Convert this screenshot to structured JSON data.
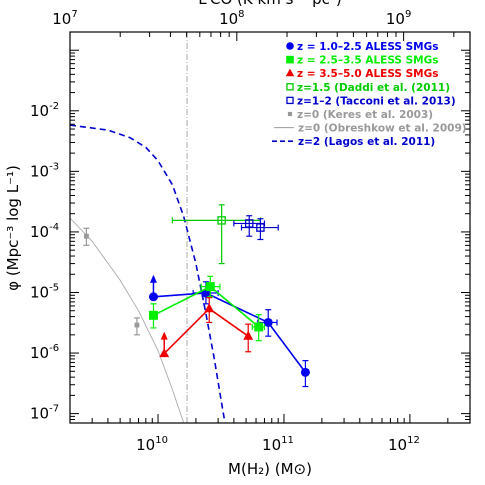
{
  "chart_data": {
    "type": "scatter",
    "title": "",
    "xlabel": "M(H₂) (M⊙)",
    "ylabel": "φ (Mpc⁻³ log L⁻¹)",
    "top_xlabel": "L′CO (K km s⁻¹ pc²)",
    "xscale": "log",
    "yscale": "log",
    "xlim": [
      2000000000.0,
      3000000000000.0
    ],
    "ylim": [
      7e-08,
      0.2
    ],
    "top_xlim": [
      10000000.0,
      2500000000.0
    ],
    "x_tick_labels": [
      "10",
      "10",
      "10"
    ],
    "x_tick_exponents": [
      "10",
      "11",
      "12"
    ],
    "y_tick_labels": [
      "10",
      "10",
      "10",
      "10",
      "10",
      "10"
    ],
    "y_tick_exponents": [
      "-7",
      "-6",
      "-5",
      "-4",
      "-3",
      "-2"
    ],
    "top_tick_labels": [
      "10",
      "10",
      "10"
    ],
    "top_tick_exponents": [
      "7",
      "8",
      "9"
    ],
    "vertical_line_x": 17000000000.0,
    "legend_position": "top-right",
    "legend": [
      {
        "label": "z = 1.0–2.5 ALESS SMGs",
        "color": "#0000ee",
        "marker": "circle"
      },
      {
        "label": "z = 2.5–3.5 ALESS SMGs",
        "color": "#00ee00",
        "marker": "square"
      },
      {
        "label": "z = 3.5–5.0 ALESS SMGs",
        "color": "#ee0000",
        "marker": "triangle"
      },
      {
        "label": "z=1.5 (Daddi et al. (2011)",
        "color": "#00cc00",
        "marker": "open-square"
      },
      {
        "label": "z=1–2 (Tacconi et al. 2013)",
        "color": "#0000cc",
        "marker": "open-square"
      },
      {
        "label": "z=0 (Keres et al. 2003)",
        "color": "#999999",
        "marker": "small-square"
      },
      {
        "label": "z=0 (Obreshkow et al. 2009)",
        "color": "#999999",
        "marker": "line"
      },
      {
        "label": "z=2 (Lagos et al. 2011)",
        "color": "#0000cc",
        "marker": "dashed"
      }
    ],
    "series": [
      {
        "name": "z = 1.0–2.5 ALESS SMGs",
        "color": "#0000ee",
        "marker": "circle",
        "connect": true,
        "points": [
          {
            "x": 9200000000.0,
            "y": 8.5e-06,
            "ylo": 8.5e-06,
            "yhi": 8.5e-06,
            "arrow_up": true
          },
          {
            "x": 24000000000.0,
            "y": 9.8e-06,
            "ylo": 6.5e-06,
            "yhi": 1.5e-05,
            "xlo": 19000000000.0,
            "xhi": 30000000000.0
          },
          {
            "x": 75000000000.0,
            "y": 3.2e-06,
            "ylo": 1.9e-06,
            "yhi": 5.2e-06,
            "xlo": 62000000000.0,
            "xhi": 88000000000.0
          },
          {
            "x": 148000000000.0,
            "y": 4.8e-07,
            "ylo": 2.8e-07,
            "yhi": 7.5e-07
          }
        ]
      },
      {
        "name": "z = 2.5–3.5 ALESS SMGs",
        "color": "#00ee00",
        "marker": "square",
        "connect": true,
        "points": [
          {
            "x": 9200000000.0,
            "y": 4.2e-06,
            "ylo": 2.6e-06,
            "yhi": 6.5e-06
          },
          {
            "x": 26000000000.0,
            "y": 1.25e-05,
            "ylo": 8.5e-06,
            "yhi": 1.85e-05,
            "xlo": 22000000000.0,
            "xhi": 31000000000.0
          },
          {
            "x": 63000000000.0,
            "y": 2.7e-06,
            "ylo": 1.6e-06,
            "yhi": 4.3e-06,
            "xlo": 56000000000.0,
            "xhi": 70000000000.0
          }
        ]
      },
      {
        "name": "z = 3.5–5.0 ALESS SMGs",
        "color": "#ee0000",
        "marker": "triangle",
        "connect": true,
        "points": [
          {
            "x": 11200000000.0,
            "y": 9.8e-07,
            "ylo": 9.8e-07,
            "yhi": 9.8e-07,
            "arrow_up": true
          },
          {
            "x": 25500000000.0,
            "y": 5.4e-06,
            "ylo": 3.2e-06,
            "yhi": 8.2e-06
          },
          {
            "x": 52000000000.0,
            "y": 1.9e-06,
            "ylo": 1.05e-06,
            "yhi": 3e-06
          }
        ]
      },
      {
        "name": "z=1.5 (Daddi et al. (2011)",
        "color": "#00cc00",
        "marker": "open-square",
        "connect": false,
        "points": [
          {
            "x": 32000000000.0,
            "y": 0.000155,
            "ylo": 3e-05,
            "yhi": 0.00028,
            "xlo": 13000000000.0,
            "xhi": 65000000000.0
          }
        ]
      },
      {
        "name": "z=1–2 (Tacconi et al. 2013)",
        "color": "#0000cc",
        "marker": "open-square",
        "connect": false,
        "points": [
          {
            "x": 53000000000.0,
            "y": 0.000138,
            "ylo": 8.5e-05,
            "yhi": 0.000185,
            "xlo": 40000000000.0,
            "xhi": 70000000000.0
          },
          {
            "x": 65000000000.0,
            "y": 0.000118,
            "ylo": 7.5e-05,
            "yhi": 0.000165,
            "xlo": 46000000000.0,
            "xhi": 90000000000.0
          }
        ]
      },
      {
        "name": "z=0 (Keres et al. 2003)",
        "color": "#999999",
        "marker": "small-square",
        "connect": false,
        "points": [
          {
            "x": 2700000000.0,
            "y": 8.5e-05,
            "ylo": 6e-05,
            "yhi": 0.000115
          },
          {
            "x": 6800000000.0,
            "y": 2.9e-06,
            "ylo": 2e-06,
            "yhi": 3.8e-06
          }
        ]
      }
    ],
    "curves": [
      {
        "name": "z=0 (Obreshkow et al. 2009)",
        "color": "#aaaaaa",
        "style": "solid",
        "points": [
          [
            2000000000.0,
            0.00017
          ],
          [
            3000000000.0,
            7e-05
          ],
          [
            5000000000.0,
            1.6e-05
          ],
          [
            7000000000.0,
            5e-06
          ],
          [
            10000000000.0,
            1.1e-06
          ],
          [
            13000000000.0,
            2.5e-07
          ],
          [
            16000000000.0,
            7e-08
          ]
        ]
      },
      {
        "name": "z=2 (Lagos et al. 2011)",
        "color": "#0000cc",
        "style": "dashed",
        "points": [
          [
            2000000000.0,
            0.0058
          ],
          [
            4000000000.0,
            0.0048
          ],
          [
            6000000000.0,
            0.0036
          ],
          [
            8000000000.0,
            0.0025
          ],
          [
            10000000000.0,
            0.0015
          ],
          [
            13000000000.0,
            0.0006
          ],
          [
            16000000000.0,
            0.00018
          ],
          [
            20000000000.0,
            3e-05
          ],
          [
            24000000000.0,
            4.5e-06
          ],
          [
            28000000000.0,
            8e-07
          ],
          [
            32000000000.0,
            1.5e-07
          ],
          [
            34000000000.0,
            7e-08
          ]
        ]
      }
    ]
  }
}
